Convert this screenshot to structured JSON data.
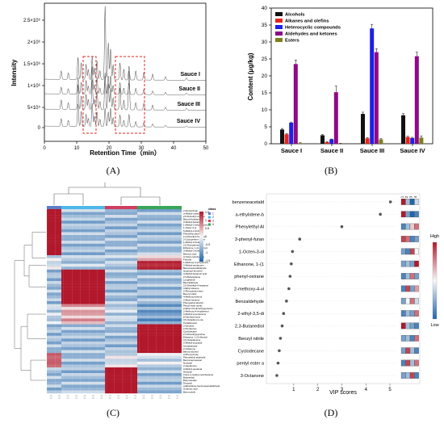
{
  "panels": [
    {
      "letter": "(A)"
    },
    {
      "letter": "(B)"
    },
    {
      "letter": "(C)"
    },
    {
      "letter": "(D)"
    }
  ],
  "chart_data": [
    {
      "panel": "A",
      "type": "line",
      "xlabel": "Retention Time（min）",
      "ylabel": "Intensity",
      "xlim": [
        0,
        50
      ],
      "x_ticks": [
        "0",
        "10",
        "20",
        "30",
        "40",
        "50"
      ],
      "y_ticks": [
        "0",
        "5×10⁵",
        "1×10⁶",
        "1.5×10⁶",
        "2×10⁶",
        "2.5×10⁶"
      ],
      "series": [
        {
          "name": "Sauce I"
        },
        {
          "name": "Sauce II"
        },
        {
          "name": "Sauce III"
        },
        {
          "name": "Sauce IV"
        }
      ],
      "highlight_regions_min": [
        [
          12,
          16
        ],
        [
          22,
          31
        ]
      ]
    },
    {
      "panel": "B",
      "type": "bar",
      "categories": [
        "Sauce I",
        "Sauce II",
        "Sauce III",
        "Sauce IV"
      ],
      "xlabel": "",
      "ylabel": "Content (μg/kg)",
      "ylim": [
        0,
        40
      ],
      "y_ticks": [
        "0",
        "5",
        "10",
        "15",
        "20",
        "25",
        "30",
        "35",
        "40"
      ],
      "legend_position": "top-left",
      "series": [
        {
          "name": "Alcohols",
          "color": "#111111",
          "values": [
            4.2,
            2.5,
            8.8,
            8.4
          ],
          "errors": [
            0.3,
            0.2,
            0.5,
            0.5
          ]
        },
        {
          "name": "Alkanes and olefins",
          "color": "#e8251b",
          "values": [
            2.8,
            0.5,
            1.6,
            2.0
          ],
          "errors": [
            0.2,
            0.1,
            0.2,
            0.2
          ]
        },
        {
          "name": "Heterocyclic compounds",
          "color": "#1c20e8",
          "values": [
            6.2,
            1.3,
            34.0,
            1.7
          ],
          "errors": [
            0.2,
            0.1,
            1.2,
            0.2
          ]
        },
        {
          "name": "Aldehydes and ketones",
          "color": "#8e0a86",
          "values": [
            23.5,
            15.2,
            27.0,
            25.8
          ],
          "errors": [
            1.2,
            1.8,
            1.0,
            1.2
          ]
        },
        {
          "name": "Esters",
          "color": "#7f7f1f",
          "values": [
            0.2,
            0.1,
            1.3,
            1.8
          ],
          "errors": [
            0.1,
            0.05,
            0.2,
            0.5
          ]
        }
      ]
    },
    {
      "panel": "C",
      "type": "heatmap",
      "legend_title": "class",
      "scale_ticks": [
        "1.5",
        "1",
        "0.5",
        "0",
        "-0.5",
        "-1",
        "-1.5"
      ],
      "group_colors": [
        "#5b7fc7",
        "#4fb8e8",
        "#d03e5e",
        "#3aa55a"
      ],
      "row_labels": [
        "2-Pentyl-furan",
        "α-Methyl-undecanal",
        "2,6-Dimethyl-nonane",
        "Benzyl-hydrazine",
        "3-Methyl-butanal",
        "1-Methyl-2-ethylbenzene",
        "1-Octen-3-ol",
        "5-Methyl-2-furfural",
        "Phenethyl alcohol",
        "2,4-Dimethyl-heptane",
        "2-Cyclopenten-1-one",
        "1-Methyl-2-butanol",
        "2,6-Nonadienal",
        "Ethanone, 1-(2-furanyl)-",
        "3-Methyl-2-butenal",
        "Benzoic acid",
        "3-Octyl-cyclohexane",
        "Furfural",
        "1-Methoxy-3-propanone",
        "2-Methyl-pentanone",
        "Benzeneacetaldehyde",
        "Isopropyl-benzene",
        "3-Methyl-butanoic acid",
        "2,3-Butanedione",
        "Longifolene",
        "Benzaldehyde",
        "2,6-Dimethyl-4-heptanol",
        "3-Ethyl-toluene",
        "2-Phenylethyl ester",
        "Benzyl nitrile",
        "4-Methoxy-phenol",
        "2-Ethyl-hexanol",
        "Phenylethyl alcohol",
        "Pentyl ester acetic",
        "2-Ethyl-3,5-dimethylpyrazine",
        "2-Methoxy-4-vinylphenol",
        "3-Methyl-2-pentanone",
        "β-Damascenone",
        "3,5-Octadien-2-one",
        "Tetradecanal",
        "2-Decanol",
        "2-Pentanone",
        "Cyclodecane",
        "2,3-Dimethylpyrazine",
        "Ethanone, 1-(2-thienyl)-",
        "3,5-Octadienone",
        "2-Methyl-propanal",
        "Acetaldehyde",
        "2-Octanone",
        "Benzyl alcohol",
        "3-Phenyl-furan",
        "Phenylethyl aldehyde",
        "Benzenepropanal",
        "Nonanal",
        "2-Heptanone",
        "3-Methyl-pentanal",
        "Hexanal",
        "Trans-4-methyl-cyclohexanol",
        "Butanedial",
        "Butyl acetate",
        "Decanal",
        "α-Ethylidene-benzeneacetaldehyde",
        "Octanoic acid",
        "Benzonitrile"
      ],
      "blocks": [
        {
          "rows": [
            0,
            16
          ],
          "values": [
            1.8,
            -0.6,
            -0.6,
            -0.6
          ]
        },
        {
          "rows": [
            16,
            18
          ],
          "values": [
            -0.3,
            -0.5,
            -0.4,
            0.5
          ]
        },
        {
          "rows": [
            18,
            21
          ],
          "values": [
            -0.2,
            -0.5,
            -0.5,
            1.4
          ]
        },
        {
          "rows": [
            21,
            33
          ],
          "values": [
            -0.6,
            1.8,
            -0.6,
            -0.6
          ]
        },
        {
          "rows": [
            33,
            40
          ],
          "values": [
            -0.4,
            0.5,
            -0.4,
            -0.9
          ]
        },
        {
          "rows": [
            40,
            50
          ],
          "values": [
            -0.6,
            -0.6,
            -0.6,
            1.8
          ]
        },
        {
          "rows": [
            50,
            55
          ],
          "values": [
            1.0,
            -0.6,
            -0.2,
            -0.3
          ]
        },
        {
          "rows": [
            55,
            64
          ],
          "values": [
            -0.6,
            -0.6,
            1.8,
            -0.6
          ]
        }
      ]
    },
    {
      "panel": "D",
      "type": "scatter",
      "xlabel": "VIP scores",
      "xlim": [
        0,
        5.3
      ],
      "x_ticks": [
        "1",
        "2",
        "3",
        "4",
        "5"
      ],
      "col_headers": [
        "1",
        "2",
        "3",
        "4"
      ],
      "scale_labels": {
        "high": "High",
        "low": "Low"
      },
      "points": [
        {
          "label": "benzeneacetald",
          "value": 5.02,
          "cells": [
            1.0,
            0.3,
            0.0,
            0.4
          ]
        },
        {
          "label": "a-ethylidene-b",
          "value": 4.6,
          "cells": [
            1.0,
            0.2,
            0.0,
            0.1
          ]
        },
        {
          "label": "Phenylethyl Al",
          "value": 3.0,
          "cells": [
            0.1,
            0.3,
            0.6,
            0.8
          ]
        },
        {
          "label": "3-phenyl-furan",
          "value": 1.25,
          "cells": [
            0.9,
            0.8,
            0.1,
            0.2
          ]
        },
        {
          "label": "1-Octen-3-ol",
          "value": 0.95,
          "cells": [
            0.2,
            0.1,
            0.9,
            0.5
          ]
        },
        {
          "label": "Ethanone, 1-(1",
          "value": 0.9,
          "cells": [
            0.2,
            0.3,
            0.2,
            1.0
          ]
        },
        {
          "label": "phenyl-oxirane",
          "value": 0.85,
          "cells": [
            0.1,
            0.3,
            0.8,
            0.2
          ]
        },
        {
          "label": "2-methoxy-4-vi",
          "value": 0.8,
          "cells": [
            0.1,
            0.9,
            0.2,
            0.7
          ]
        },
        {
          "label": "Benzaldehyde",
          "value": 0.7,
          "cells": [
            0.2,
            0.5,
            0.8,
            0.4
          ]
        },
        {
          "label": "2-ethyl-3,5-di",
          "value": 0.58,
          "cells": [
            0.1,
            0.3,
            0.2,
            0.8
          ]
        },
        {
          "label": "2,3-Butanediol",
          "value": 0.52,
          "cells": [
            1.0,
            0.3,
            0.2,
            0.1
          ]
        },
        {
          "label": "Benzyl nitrile",
          "value": 0.45,
          "cells": [
            0.2,
            0.3,
            0.1,
            0.8
          ]
        },
        {
          "label": "Cyclodecane",
          "value": 0.4,
          "cells": [
            0.2,
            0.9,
            0.3,
            0.1
          ]
        },
        {
          "label": "pentyl ester a",
          "value": 0.35,
          "cells": [
            0.1,
            0.9,
            0.3,
            0.8
          ]
        },
        {
          "label": "3-Octanone",
          "value": 0.3,
          "cells": [
            0.2,
            0.3,
            0.9,
            0.1
          ]
        }
      ]
    }
  ]
}
